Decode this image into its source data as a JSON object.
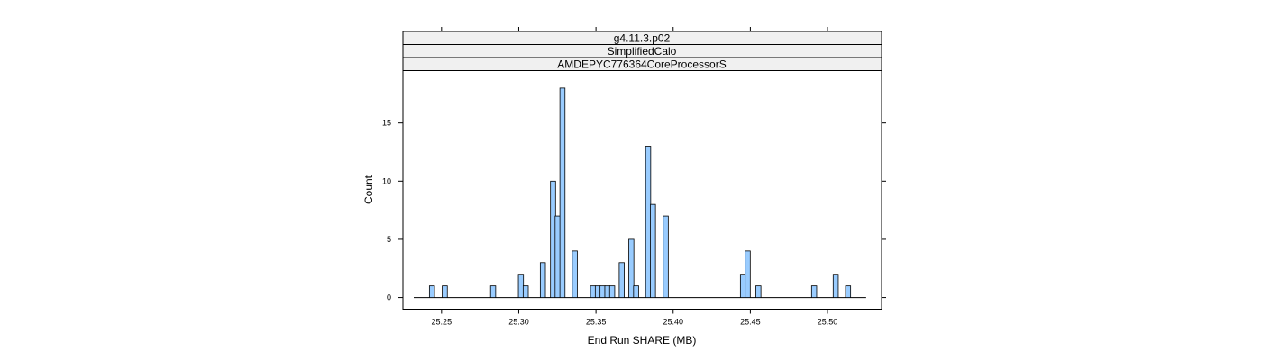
{
  "chart_data": {
    "type": "bar",
    "strips": [
      "g4.11.3.p02",
      "SimplifiedCalo",
      "AMDEPYC776364CoreProcessorS"
    ],
    "xlabel": "End Run SHARE (MB)",
    "ylabel": "Count",
    "xlim": [
      25.225,
      25.535
    ],
    "ylim": [
      -1,
      19.5
    ],
    "x_ticks": [
      25.25,
      25.3,
      25.35,
      25.4,
      25.45,
      25.5
    ],
    "x_tick_labels": [
      "25.25",
      "25.30",
      "25.35",
      "25.40",
      "25.45",
      "25.50"
    ],
    "y_ticks": [
      0,
      5,
      10,
      15
    ],
    "y_tick_labels": [
      "0",
      "5",
      "10",
      "15"
    ],
    "bin_width": 0.0033,
    "baseline_range": [
      25.232,
      25.525
    ],
    "bars": [
      {
        "x": 25.2438,
        "count": 1
      },
      {
        "x": 25.2521,
        "count": 1
      },
      {
        "x": 25.2834,
        "count": 1
      },
      {
        "x": 25.3014,
        "count": 2
      },
      {
        "x": 25.3045,
        "count": 1
      },
      {
        "x": 25.3156,
        "count": 3
      },
      {
        "x": 25.3222,
        "count": 10
      },
      {
        "x": 25.3252,
        "count": 7
      },
      {
        "x": 25.3283,
        "count": 18
      },
      {
        "x": 25.3363,
        "count": 4
      },
      {
        "x": 25.3481,
        "count": 1
      },
      {
        "x": 25.3512,
        "count": 1
      },
      {
        "x": 25.3543,
        "count": 1
      },
      {
        "x": 25.3574,
        "count": 1
      },
      {
        "x": 25.3605,
        "count": 1
      },
      {
        "x": 25.3667,
        "count": 3
      },
      {
        "x": 25.3729,
        "count": 5
      },
      {
        "x": 25.376,
        "count": 1
      },
      {
        "x": 25.3838,
        "count": 13
      },
      {
        "x": 25.3869,
        "count": 8
      },
      {
        "x": 25.3952,
        "count": 7
      },
      {
        "x": 25.4452,
        "count": 2
      },
      {
        "x": 25.4483,
        "count": 4
      },
      {
        "x": 25.4552,
        "count": 1
      },
      {
        "x": 25.4913,
        "count": 1
      },
      {
        "x": 25.5053,
        "count": 2
      },
      {
        "x": 25.5133,
        "count": 1
      }
    ],
    "colors": {
      "bar_fill": "#99ccff",
      "bar_stroke": "#000000",
      "strip_fill": "#f0f0f0",
      "frame": "#000000"
    }
  }
}
